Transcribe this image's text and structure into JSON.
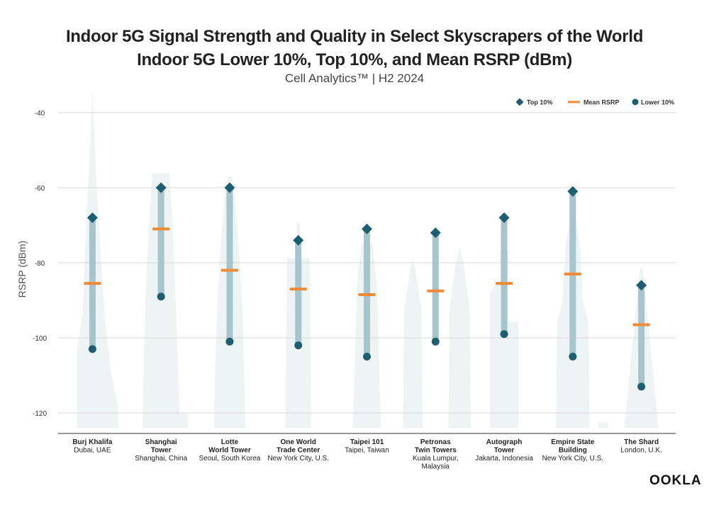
{
  "chart_data": {
    "type": "range-dot",
    "title": "Indoor 5G Signal Strength and Quality in Select Skyscrapers of the World",
    "subtitle": "Indoor 5G Lower 10%, Top 10%, and Mean RSRP (dBm)",
    "source_line": "Cell Analytics™ | H2 2024",
    "ylabel": "RSRP (dBm)",
    "ylim": [
      -124,
      -38
    ],
    "yticks": [
      -40,
      -60,
      -80,
      -100,
      -120
    ],
    "grid": true,
    "legend_position": "top-right",
    "legend": {
      "top": "Top 10%",
      "mean": "Mean RSRP",
      "low": "Lower 10%"
    },
    "categories": [
      {
        "name": [
          "Burj Khalifa"
        ],
        "location": [
          "Dubai, UAE"
        ]
      },
      {
        "name": [
          "Shanghai",
          "Tower"
        ],
        "location": [
          "Shanghai, China"
        ]
      },
      {
        "name": [
          "Lotte",
          "World Tower"
        ],
        "location": [
          "Seoul, South Korea"
        ]
      },
      {
        "name": [
          "One World",
          "Trade Center"
        ],
        "location": [
          "New York City, U.S."
        ]
      },
      {
        "name": [
          "Taipei 101"
        ],
        "location": [
          "Taipei, Taiwan"
        ]
      },
      {
        "name": [
          "Petronas",
          "Twin Towers"
        ],
        "location": [
          "Kuala Lumpur,",
          "Malaysia"
        ]
      },
      {
        "name": [
          "Autograph",
          "Tower"
        ],
        "location": [
          "Jakarta, Indonesia"
        ]
      },
      {
        "name": [
          "Empire State",
          "Building"
        ],
        "location": [
          "New York City, U.S."
        ]
      },
      {
        "name": [
          "The Shard"
        ],
        "location": [
          "London, U.K."
        ]
      }
    ],
    "series": [
      {
        "name": "Top 10%",
        "values": [
          -68,
          -60,
          -60,
          -74,
          -71,
          -72,
          -68,
          -61,
          -86
        ]
      },
      {
        "name": "Mean RSRP",
        "values": [
          -85.5,
          -71,
          -82,
          -87,
          -88.5,
          -87.5,
          -85.5,
          -83,
          -96.5
        ]
      },
      {
        "name": "Lower 10%",
        "values": [
          -103,
          -89,
          -101,
          -102,
          -105,
          -101,
          -99,
          -105,
          -113
        ]
      }
    ],
    "colors": {
      "top": "#1d5f70",
      "mean": "#f08a35",
      "low": "#1d5f70",
      "range_bar": "#a8c4cc",
      "silhouette": "#eef3f4",
      "grid": "#d9d9d9"
    }
  },
  "brand": "OOKLA"
}
